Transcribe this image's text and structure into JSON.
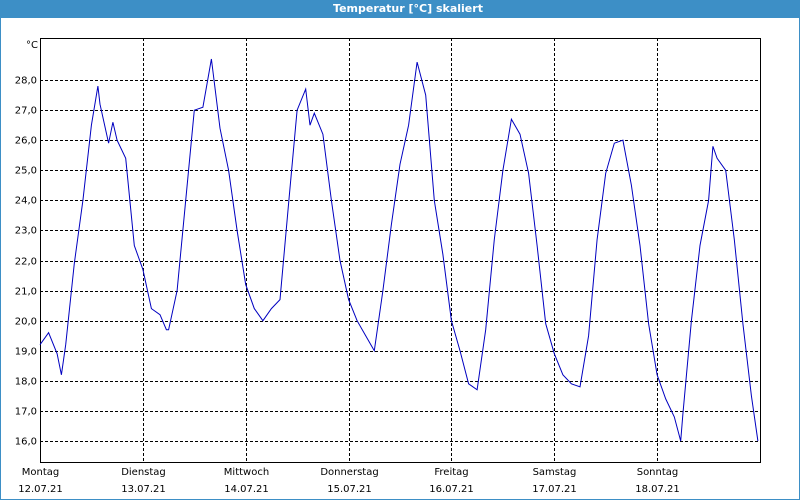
{
  "chart_data": {
    "type": "line",
    "title": "Temperatur [°C] skaliert",
    "y_unit": "°C",
    "color": "#0000c0",
    "grid": true,
    "xlim": [
      0,
      168
    ],
    "ylim": [
      15.3,
      29.4
    ],
    "yticks": [
      {
        "value": 16,
        "label": "16,0"
      },
      {
        "value": 17,
        "label": "17,0"
      },
      {
        "value": 18,
        "label": "18,0"
      },
      {
        "value": 19,
        "label": "19,0"
      },
      {
        "value": 20,
        "label": "20,0"
      },
      {
        "value": 21,
        "label": "21,0"
      },
      {
        "value": 22,
        "label": "22,0"
      },
      {
        "value": 23,
        "label": "23,0"
      },
      {
        "value": 24,
        "label": "24,0"
      },
      {
        "value": 25,
        "label": "25,0"
      },
      {
        "value": 26,
        "label": "26,0"
      },
      {
        "value": 27,
        "label": "27,0"
      },
      {
        "value": 28,
        "label": "28,0"
      }
    ],
    "xticks": [
      {
        "value": 0,
        "label": "Montag",
        "sublabel": "12.07.21"
      },
      {
        "value": 24,
        "label": "Dienstag",
        "sublabel": "13.07.21"
      },
      {
        "value": 48,
        "label": "Mittwoch",
        "sublabel": "14.07.21"
      },
      {
        "value": 72,
        "label": "Donnerstag",
        "sublabel": "15.07.21"
      },
      {
        "value": 96,
        "label": "Freitag",
        "sublabel": "16.07.21"
      },
      {
        "value": 120,
        "label": "Samstag",
        "sublabel": "17.07.21"
      },
      {
        "value": 144,
        "label": "Sonntag",
        "sublabel": "18.07.21"
      }
    ],
    "x": [
      0,
      2,
      4,
      5,
      6,
      8,
      10,
      12,
      13.5,
      14,
      16,
      17,
      18,
      20,
      22,
      24,
      26,
      28,
      29.5,
      30,
      32,
      34,
      36,
      38,
      40,
      42,
      44,
      46,
      48,
      50,
      52,
      54,
      56,
      58,
      60,
      62,
      63,
      64,
      66,
      68,
      70,
      72,
      74,
      76,
      78,
      80,
      82,
      84,
      86,
      88,
      90,
      92,
      94,
      96,
      98,
      100,
      102,
      104,
      106,
      108,
      110,
      112,
      114,
      116,
      118,
      120,
      122,
      124,
      126,
      128,
      130,
      132,
      134,
      136,
      138,
      140,
      142,
      144,
      146,
      148,
      149.5,
      150,
      152,
      154,
      156,
      157,
      158,
      160,
      162,
      164,
      166,
      167.5
    ],
    "values": [
      19.2,
      19.6,
      18.9,
      18.2,
      19.2,
      21.9,
      24.0,
      26.5,
      27.8,
      27.2,
      25.9,
      26.6,
      26.0,
      25.4,
      22.5,
      21.7,
      20.4,
      20.2,
      19.7,
      19.7,
      21.0,
      24.0,
      27.0,
      27.1,
      28.7,
      26.4,
      25.0,
      23.0,
      21.2,
      20.4,
      20.0,
      20.4,
      20.7,
      23.9,
      27.0,
      27.7,
      26.5,
      26.9,
      26.2,
      24.0,
      22.0,
      20.7,
      20.0,
      19.5,
      19.0,
      21.0,
      23.2,
      25.2,
      26.5,
      28.6,
      27.5,
      24.0,
      22.2,
      20.0,
      19.0,
      17.9,
      17.7,
      19.7,
      22.7,
      25.0,
      26.7,
      26.2,
      24.9,
      22.5,
      19.9,
      18.9,
      18.2,
      17.9,
      17.8,
      19.5,
      22.7,
      24.9,
      25.9,
      26.0,
      24.5,
      22.5,
      19.9,
      18.2,
      17.4,
      16.8,
      16.0,
      16.9,
      20.0,
      22.5,
      24.0,
      25.8,
      25.4,
      25.0,
      22.7,
      19.9,
      17.5,
      16.0
    ]
  }
}
